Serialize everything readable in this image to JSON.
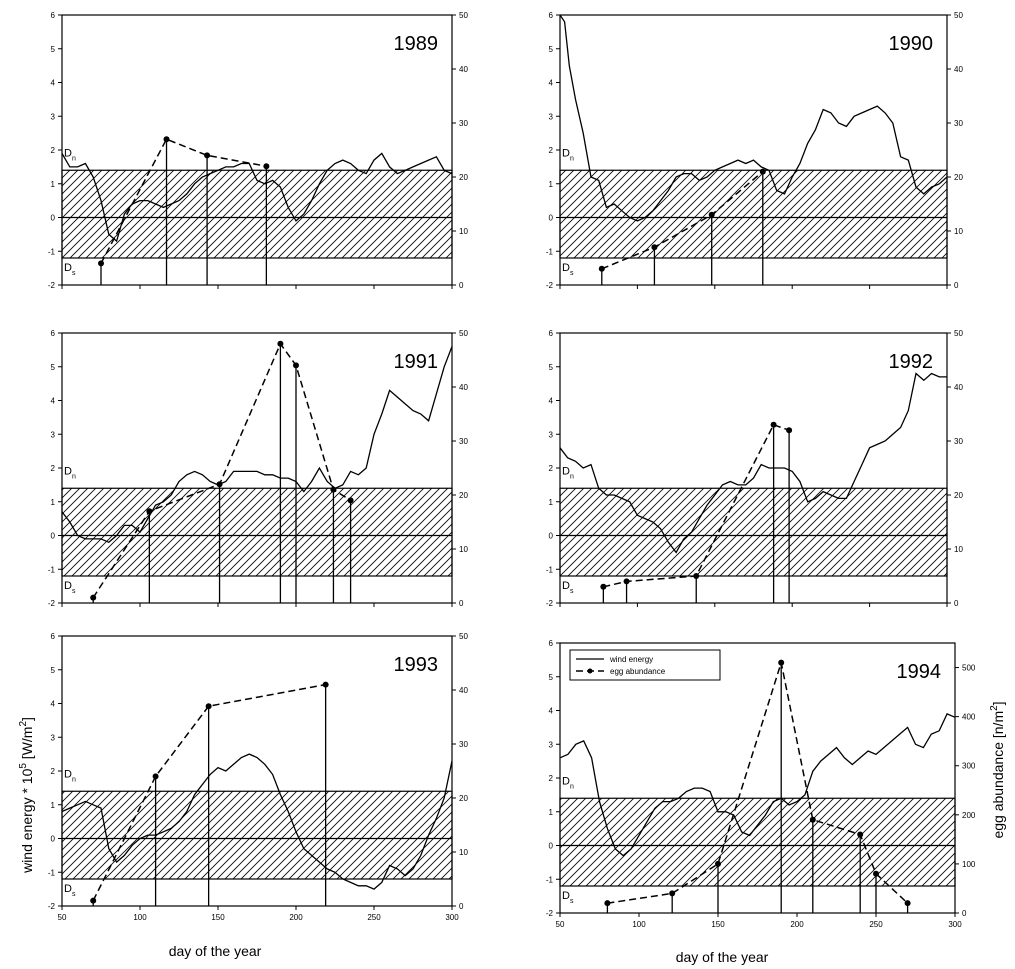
{
  "figure": {
    "xlabel": "day of the year",
    "ylabel_left": "wind energy * 10<sup>5</sup> [W/m<sup>2</sup>]",
    "ylabel_left_text": "wind energy * 105 [W/m2]",
    "ylabel_right_text": "egg abundance [n/m2]",
    "legend": {
      "wind": "wind energy",
      "egg": "egg abundance"
    },
    "band_labels": {
      "north": "D",
      "north_sub": "n",
      "south": "D",
      "south_sub": "s"
    }
  },
  "chart_data": [
    {
      "type": "line",
      "title": "1989",
      "xlim": [
        50,
        300
      ],
      "ylim": [
        -2,
        6
      ],
      "y2lim": [
        0,
        50
      ],
      "xticks": [],
      "yticks": [
        -2,
        -1,
        0,
        1,
        2,
        3,
        4,
        5,
        6
      ],
      "y2ticks": [
        0,
        10,
        20,
        30,
        40,
        50
      ],
      "band": [
        -1.2,
        1.4
      ],
      "series": [
        {
          "name": "wind energy",
          "axis": "left",
          "x": [
            50,
            55,
            60,
            65,
            70,
            75,
            80,
            85,
            90,
            95,
            100,
            105,
            110,
            115,
            120,
            125,
            130,
            135,
            140,
            145,
            150,
            155,
            160,
            165,
            170,
            175,
            180,
            185,
            190,
            195,
            200,
            205,
            210,
            215,
            220,
            225,
            230,
            235,
            240,
            245,
            250,
            255,
            260,
            265,
            270,
            275,
            280,
            285,
            290,
            295,
            300
          ],
          "y": [
            1.9,
            1.5,
            1.5,
            1.6,
            1.2,
            0.5,
            -0.5,
            -0.7,
            0.1,
            0.4,
            0.5,
            0.5,
            0.4,
            0.3,
            0.4,
            0.5,
            0.7,
            1.0,
            1.2,
            1.3,
            1.4,
            1.5,
            1.5,
            1.6,
            1.6,
            1.1,
            1.0,
            1.1,
            0.9,
            0.3,
            -0.1,
            0.1,
            0.5,
            1.0,
            1.4,
            1.6,
            1.7,
            1.6,
            1.4,
            1.3,
            1.7,
            1.9,
            1.5,
            1.3,
            1.4,
            1.5,
            1.6,
            1.7,
            1.8,
            1.4,
            1.3
          ]
        },
        {
          "name": "egg abundance",
          "axis": "right",
          "x": [
            75,
            117,
            143,
            181
          ],
          "y": [
            4,
            27,
            24,
            22
          ]
        }
      ]
    },
    {
      "type": "line",
      "title": "1990",
      "xlim": [
        50,
        300
      ],
      "ylim": [
        -2,
        6
      ],
      "y2lim": [
        0,
        50
      ],
      "xticks": [],
      "yticks": [
        -2,
        -1,
        0,
        1,
        2,
        3,
        4,
        5,
        6
      ],
      "y2ticks": [
        0,
        10,
        20,
        30,
        40,
        50
      ],
      "band": [
        -1.2,
        1.4
      ],
      "series": [
        {
          "name": "wind energy",
          "axis": "left",
          "x": [
            50,
            53,
            56,
            60,
            65,
            70,
            75,
            80,
            85,
            90,
            95,
            100,
            105,
            110,
            115,
            120,
            125,
            130,
            135,
            140,
            145,
            150,
            155,
            160,
            165,
            170,
            175,
            180,
            185,
            190,
            195,
            200,
            205,
            210,
            215,
            220,
            225,
            230,
            235,
            240,
            245,
            250,
            255,
            260,
            265,
            270,
            275,
            280,
            285,
            290,
            295,
            300
          ],
          "y": [
            6,
            5.8,
            4.5,
            3.5,
            2.5,
            1.2,
            1.1,
            0.3,
            0.4,
            0.2,
            0.0,
            -0.1,
            0.0,
            0.2,
            0.5,
            0.8,
            1.2,
            1.3,
            1.3,
            1.1,
            1.2,
            1.4,
            1.5,
            1.6,
            1.7,
            1.6,
            1.7,
            1.5,
            1.4,
            0.8,
            0.7,
            1.2,
            1.6,
            2.2,
            2.6,
            3.2,
            3.1,
            2.8,
            2.7,
            3.0,
            3.1,
            3.2,
            3.3,
            3.1,
            2.8,
            1.8,
            1.7,
            0.9,
            0.7,
            0.9,
            1.0,
            1.2
          ]
        },
        {
          "name": "egg abundance",
          "axis": "right",
          "x": [
            77,
            111,
            148,
            181
          ],
          "y": [
            3,
            7,
            13,
            21
          ]
        }
      ]
    },
    {
      "type": "line",
      "title": "1991",
      "xlim": [
        50,
        300
      ],
      "ylim": [
        -2,
        6
      ],
      "y2lim": [
        0,
        50
      ],
      "xticks": [],
      "yticks": [
        -2,
        -1,
        0,
        1,
        2,
        3,
        4,
        5,
        6
      ],
      "y2ticks": [
        0,
        10,
        20,
        30,
        40,
        50
      ],
      "band": [
        -1.2,
        1.4
      ],
      "series": [
        {
          "name": "wind energy",
          "axis": "left",
          "x": [
            50,
            55,
            60,
            65,
            70,
            75,
            80,
            85,
            90,
            95,
            100,
            105,
            110,
            115,
            120,
            125,
            130,
            135,
            140,
            145,
            150,
            155,
            160,
            165,
            170,
            175,
            180,
            185,
            190,
            195,
            200,
            205,
            210,
            215,
            220,
            225,
            230,
            235,
            240,
            245,
            250,
            255,
            260,
            265,
            270,
            275,
            280,
            285,
            290,
            295,
            300
          ],
          "y": [
            0.7,
            0.4,
            0.0,
            -0.1,
            -0.1,
            -0.1,
            -0.2,
            0.0,
            0.3,
            0.3,
            0.1,
            0.5,
            0.9,
            1.0,
            1.2,
            1.6,
            1.8,
            1.9,
            1.8,
            1.6,
            1.5,
            1.6,
            1.9,
            1.9,
            1.9,
            1.9,
            1.8,
            1.8,
            1.7,
            1.7,
            1.6,
            1.3,
            1.6,
            2.0,
            1.6,
            1.4,
            1.5,
            1.9,
            1.8,
            2.0,
            3.0,
            3.6,
            4.3,
            4.1,
            3.9,
            3.7,
            3.6,
            3.4,
            4.2,
            5.0,
            5.6
          ]
        },
        {
          "name": "egg abundance",
          "axis": "right",
          "x": [
            70,
            106,
            151,
            190,
            200,
            224,
            235
          ],
          "y": [
            1,
            17,
            22,
            48,
            44,
            21,
            19
          ]
        }
      ]
    },
    {
      "type": "line",
      "title": "1992",
      "xlim": [
        50,
        300
      ],
      "ylim": [
        -2,
        6
      ],
      "y2lim": [
        0,
        50
      ],
      "xticks": [],
      "yticks": [
        -2,
        -1,
        0,
        1,
        2,
        3,
        4,
        5,
        6
      ],
      "y2ticks": [
        0,
        10,
        20,
        30,
        40,
        50
      ],
      "band": [
        -1.2,
        1.4
      ],
      "series": [
        {
          "name": "wind energy",
          "axis": "left",
          "x": [
            50,
            55,
            60,
            65,
            70,
            75,
            80,
            85,
            90,
            95,
            100,
            105,
            110,
            115,
            120,
            125,
            130,
            135,
            140,
            145,
            150,
            155,
            160,
            165,
            170,
            175,
            180,
            185,
            190,
            195,
            200,
            205,
            210,
            215,
            220,
            225,
            230,
            235,
            240,
            245,
            250,
            255,
            260,
            265,
            270,
            275,
            280,
            285,
            290,
            295,
            300
          ],
          "y": [
            2.6,
            2.3,
            2.2,
            2.0,
            2.1,
            1.4,
            1.2,
            1.2,
            1.1,
            1.0,
            0.6,
            0.5,
            0.4,
            0.2,
            -0.2,
            -0.5,
            -0.1,
            0.1,
            0.5,
            0.9,
            1.2,
            1.5,
            1.6,
            1.5,
            1.5,
            1.7,
            2.1,
            2.0,
            2.0,
            2.0,
            1.9,
            1.6,
            1.0,
            1.1,
            1.3,
            1.2,
            1.1,
            1.1,
            1.6,
            2.1,
            2.6,
            2.7,
            2.8,
            3.0,
            3.2,
            3.7,
            4.8,
            4.6,
            4.8,
            4.7,
            4.7
          ]
        },
        {
          "name": "egg abundance",
          "axis": "right",
          "x": [
            78,
            93,
            138,
            188,
            198
          ],
          "y": [
            3,
            4,
            5,
            33,
            32
          ]
        }
      ]
    },
    {
      "type": "line",
      "title": "1993",
      "xlim": [
        50,
        300
      ],
      "ylim": [
        -2,
        6
      ],
      "y2lim": [
        0,
        50
      ],
      "xticks": [
        50,
        100,
        150,
        200,
        250,
        300
      ],
      "yticks": [
        -2,
        -1,
        0,
        1,
        2,
        3,
        4,
        5,
        6
      ],
      "y2ticks": [
        0,
        10,
        20,
        30,
        40,
        50
      ],
      "band": [
        -1.2,
        1.4
      ],
      "series": [
        {
          "name": "wind energy",
          "axis": "left",
          "x": [
            50,
            55,
            60,
            65,
            70,
            75,
            80,
            85,
            90,
            95,
            100,
            105,
            110,
            115,
            120,
            125,
            130,
            135,
            140,
            145,
            150,
            155,
            160,
            165,
            170,
            175,
            180,
            185,
            190,
            195,
            200,
            205,
            210,
            215,
            220,
            225,
            230,
            235,
            240,
            245,
            250,
            255,
            260,
            265,
            270,
            275,
            280,
            285,
            290,
            295,
            300
          ],
          "y": [
            0.8,
            0.9,
            1.0,
            1.1,
            1.0,
            0.9,
            -0.3,
            -0.7,
            -0.5,
            -0.2,
            0.0,
            0.1,
            0.1,
            0.2,
            0.3,
            0.5,
            0.8,
            1.3,
            1.6,
            1.9,
            2.1,
            2.0,
            2.2,
            2.4,
            2.5,
            2.4,
            2.2,
            1.9,
            1.3,
            0.8,
            0.2,
            -0.3,
            -0.5,
            -0.7,
            -0.9,
            -1.0,
            -1.2,
            -1.3,
            -1.4,
            -1.4,
            -1.5,
            -1.3,
            -0.8,
            -0.9,
            -1.1,
            -0.9,
            -0.5,
            0.1,
            0.6,
            1.2,
            2.3
          ]
        },
        {
          "name": "egg abundance",
          "axis": "right",
          "x": [
            70,
            110,
            144,
            219
          ],
          "y": [
            1,
            24,
            37,
            41
          ]
        }
      ]
    },
    {
      "type": "line",
      "title": "1994",
      "xlim": [
        50,
        300
      ],
      "ylim": [
        -2,
        6
      ],
      "y2lim": [
        0,
        550
      ],
      "xticks": [
        50,
        100,
        150,
        200,
        250,
        300
      ],
      "yticks": [
        -2,
        -1,
        0,
        1,
        2,
        3,
        4,
        5,
        6
      ],
      "y2ticks": [
        0,
        100,
        200,
        300,
        400,
        500
      ],
      "band": [
        -1.2,
        1.4
      ],
      "series": [
        {
          "name": "wind energy",
          "axis": "left",
          "x": [
            50,
            55,
            60,
            65,
            70,
            75,
            80,
            85,
            90,
            95,
            100,
            105,
            110,
            115,
            120,
            125,
            130,
            135,
            140,
            145,
            150,
            155,
            160,
            165,
            170,
            175,
            180,
            185,
            190,
            195,
            200,
            205,
            210,
            215,
            220,
            225,
            230,
            235,
            240,
            245,
            250,
            255,
            260,
            265,
            270,
            275,
            280,
            285,
            290,
            295,
            300
          ],
          "y": [
            2.6,
            2.7,
            3.0,
            3.1,
            2.6,
            1.3,
            0.5,
            -0.1,
            -0.3,
            -0.1,
            0.3,
            0.7,
            1.1,
            1.3,
            1.3,
            1.4,
            1.6,
            1.7,
            1.7,
            1.6,
            1.0,
            1.0,
            0.9,
            0.4,
            0.3,
            0.6,
            0.9,
            1.3,
            1.4,
            1.2,
            1.3,
            1.5,
            2.2,
            2.5,
            2.7,
            2.9,
            2.6,
            2.4,
            2.6,
            2.8,
            2.7,
            2.9,
            3.1,
            3.3,
            3.5,
            3.0,
            2.9,
            3.3,
            3.4,
            3.9,
            3.8
          ]
        },
        {
          "name": "egg abundance",
          "axis": "right",
          "x": [
            80,
            121,
            150,
            190,
            210,
            240,
            250,
            270
          ],
          "y": [
            20,
            40,
            100,
            510,
            190,
            160,
            80,
            20
          ]
        }
      ]
    }
  ]
}
